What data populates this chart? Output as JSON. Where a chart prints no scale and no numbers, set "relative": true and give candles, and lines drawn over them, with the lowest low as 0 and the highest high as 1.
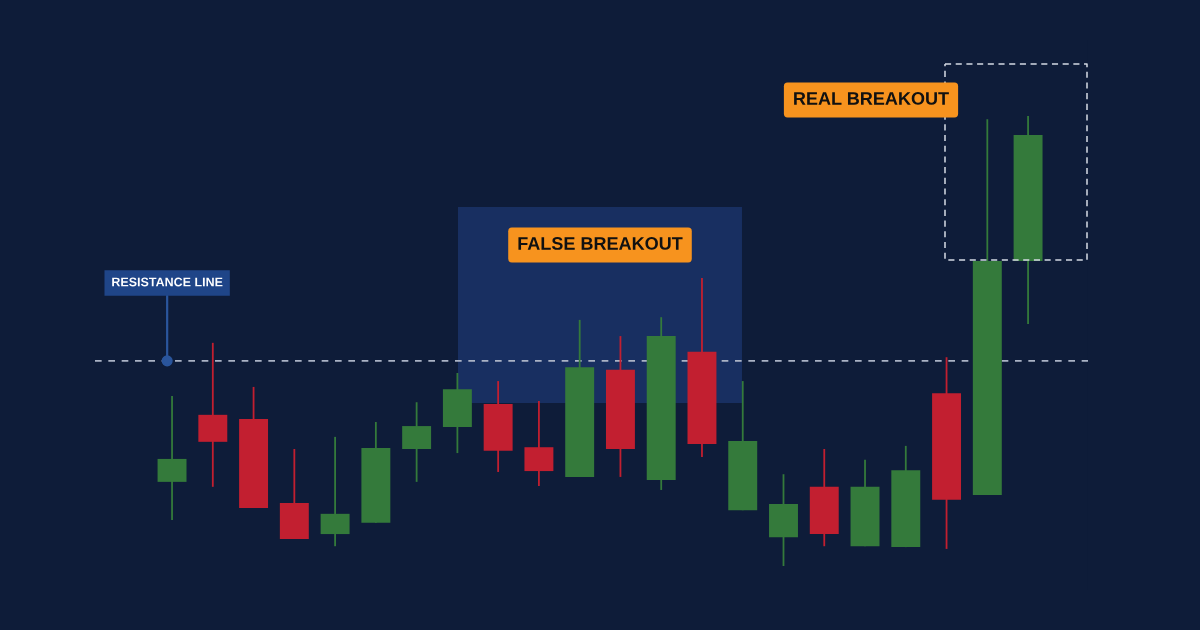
{
  "chart_data": {
    "type": "candlestick",
    "relative": true,
    "categories": [
      null,
      null,
      null,
      null,
      null,
      null,
      null,
      null,
      null,
      null,
      null,
      null,
      null,
      null,
      null,
      null,
      null,
      null,
      null,
      null,
      null,
      null
    ],
    "ohlc": [
      [
        0.187,
        0.378,
        0.102,
        0.238
      ],
      [
        0.336,
        0.496,
        0.176,
        0.276
      ],
      [
        0.327,
        0.398,
        0.129,
        0.129
      ],
      [
        0.14,
        0.26,
        0.06,
        0.06
      ],
      [
        0.071,
        0.287,
        0.044,
        0.116
      ],
      [
        0.096,
        0.32,
        0.096,
        0.262
      ],
      [
        0.26,
        0.364,
        0.187,
        0.311
      ],
      [
        0.309,
        0.429,
        0.251,
        0.393
      ],
      [
        0.36,
        0.411,
        0.209,
        0.256
      ],
      [
        0.264,
        0.367,
        0.178,
        0.211
      ],
      [
        0.198,
        0.547,
        0.198,
        0.442
      ],
      [
        0.436,
        0.511,
        0.198,
        0.26
      ],
      [
        0.191,
        0.553,
        0.169,
        0.511
      ],
      [
        0.476,
        0.64,
        0.242,
        0.271
      ],
      [
        0.124,
        0.411,
        0.124,
        0.278
      ],
      [
        0.064,
        0.204,
        0.0,
        0.138
      ],
      [
        0.176,
        0.26,
        0.044,
        0.071
      ],
      [
        0.044,
        0.236,
        0.044,
        0.176
      ],
      [
        0.042,
        0.267,
        0.042,
        0.213
      ],
      [
        0.384,
        0.464,
        0.038,
        0.147
      ],
      [
        0.158,
        0.993,
        0.158,
        0.678
      ],
      [
        0.678,
        1.0,
        0.538,
        0.958
      ]
    ],
    "colors": [
      "#347a3b",
      "#c21f30",
      "#c21f30",
      "#c21f30",
      "#347a3b",
      "#347a3b",
      "#347a3b",
      "#347a3b",
      "#c21f30",
      "#c21f30",
      "#347a3b",
      "#c21f30",
      "#347a3b",
      "#c21f30",
      "#347a3b",
      "#347a3b",
      "#c21f30",
      "#347a3b",
      "#347a3b",
      "#c21f30",
      "#347a3b",
      "#347a3b"
    ],
    "ref_lines": [
      {
        "axis": "y",
        "value": 0.456,
        "label": "RESISTANCE LINE",
        "color": "#aab3c5",
        "line_style": "dashed"
      }
    ],
    "annotations": [
      "FALSE BREAKOUT",
      "REAL BREAKOUT"
    ]
  }
}
